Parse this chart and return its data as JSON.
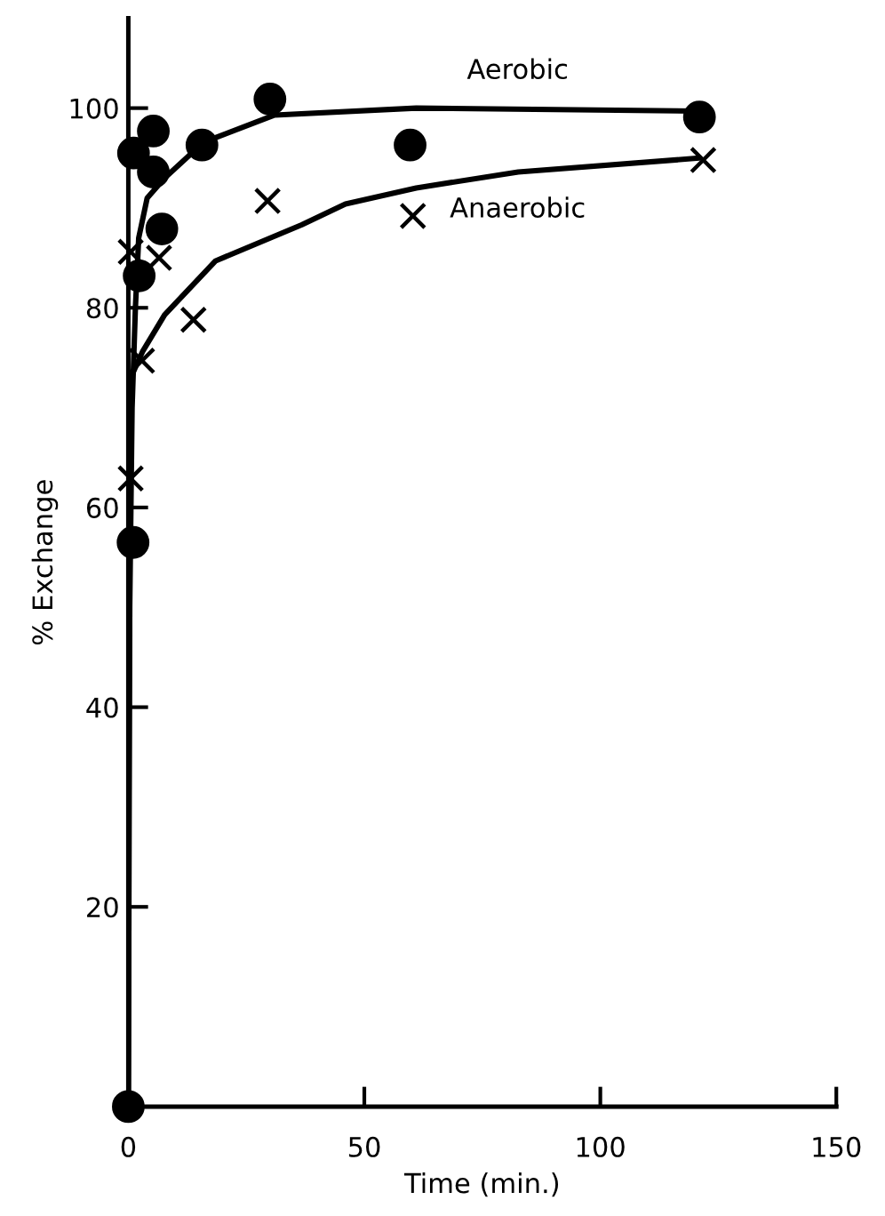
{
  "chart_data": {
    "type": "scatter",
    "xlabel": "Time (min.)",
    "ylabel": "% Exchange",
    "xlim": [
      0,
      150
    ],
    "ylim": [
      0,
      109
    ],
    "xticks": [
      0,
      50,
      100,
      150
    ],
    "yticks": [
      20,
      40,
      60,
      80,
      100
    ],
    "grid": false,
    "legend": false,
    "series": [
      {
        "marker": "circle",
        "color": "#000000",
        "x": [
          0,
          1,
          1.1,
          2.3,
          5.3,
          5.3,
          7.1,
          15.6,
          30,
          59.7,
          121
        ],
        "values": [
          0,
          56.5,
          95.5,
          83.2,
          97.7,
          93.6,
          87.9,
          96.3,
          100.9,
          96.3,
          99.1
        ]
      },
      {
        "marker": "cross",
        "color": "#000000",
        "x": [
          0.5,
          0.5,
          2.9,
          6.5,
          13.8,
          29.5,
          60.3,
          121.8
        ],
        "values": [
          62.9,
          85.6,
          74.7,
          85,
          78.8,
          90.7,
          89.2,
          94.8
        ]
      },
      {
        "type": "line",
        "name": "Aerobic",
        "marker": "none",
        "color": "#000000",
        "x": [
          0,
          0.3,
          0.8,
          1.5,
          2.2,
          4,
          7.7,
          16,
          31,
          61,
          121
        ],
        "values": [
          0,
          50,
          70,
          80,
          87,
          91,
          93,
          96.6,
          99.3,
          100,
          99.7
        ]
      },
      {
        "type": "line",
        "name": "Anaerobic",
        "marker": "none",
        "color": "#000000",
        "x": [
          0,
          0.2,
          0.5,
          3,
          7.7,
          18.5,
          36.7,
          46,
          61,
          82.6,
          121
        ],
        "values": [
          0,
          60,
          73,
          75.6,
          79.3,
          84.7,
          88.3,
          90.4,
          92,
          93.6,
          95
        ]
      }
    ]
  }
}
